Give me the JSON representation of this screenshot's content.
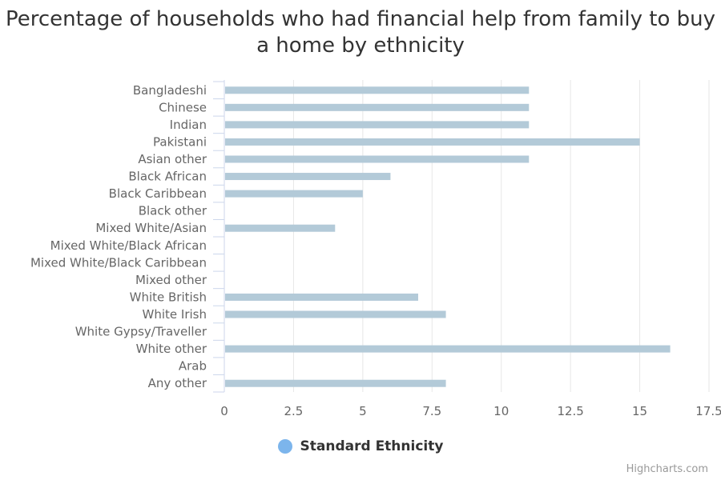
{
  "chart_data": {
    "type": "bar",
    "orientation": "horizontal",
    "title": "Percentage of households who had financial help from family to buy a home by ethnicity",
    "xlabel": "",
    "ylabel": "",
    "categories": [
      "Bangladeshi",
      "Chinese",
      "Indian",
      "Pakistani",
      "Asian other",
      "Black African",
      "Black Caribbean",
      "Black other",
      "Mixed White/Asian",
      "Mixed White/Black African",
      "Mixed White/Black Caribbean",
      "Mixed other",
      "White British",
      "White Irish",
      "White Gypsy/Traveller",
      "White other",
      "Arab",
      "Any other"
    ],
    "series": [
      {
        "name": "Standard Ethnicity",
        "values": [
          11,
          11,
          11,
          15,
          11,
          6,
          5,
          null,
          4,
          null,
          null,
          null,
          7,
          8,
          null,
          16.1,
          null,
          8
        ]
      }
    ],
    "xlim": [
      0,
      17.5
    ],
    "x_ticks": [
      0,
      2.5,
      5,
      7.5,
      10,
      12.5,
      15,
      17.5
    ],
    "x_tick_labels": [
      "0",
      "2.5",
      "5",
      "7.5",
      "10",
      "12.5",
      "15",
      "17.5"
    ],
    "grid": true,
    "legend_position": "bottom-center",
    "bar_color": "#b3cad8",
    "legend_marker_color": "#7cb5ec"
  },
  "legend": {
    "label": "Standard Ethnicity",
    "marker_color": "#7cb5ec"
  },
  "credits": "Highcharts.com"
}
